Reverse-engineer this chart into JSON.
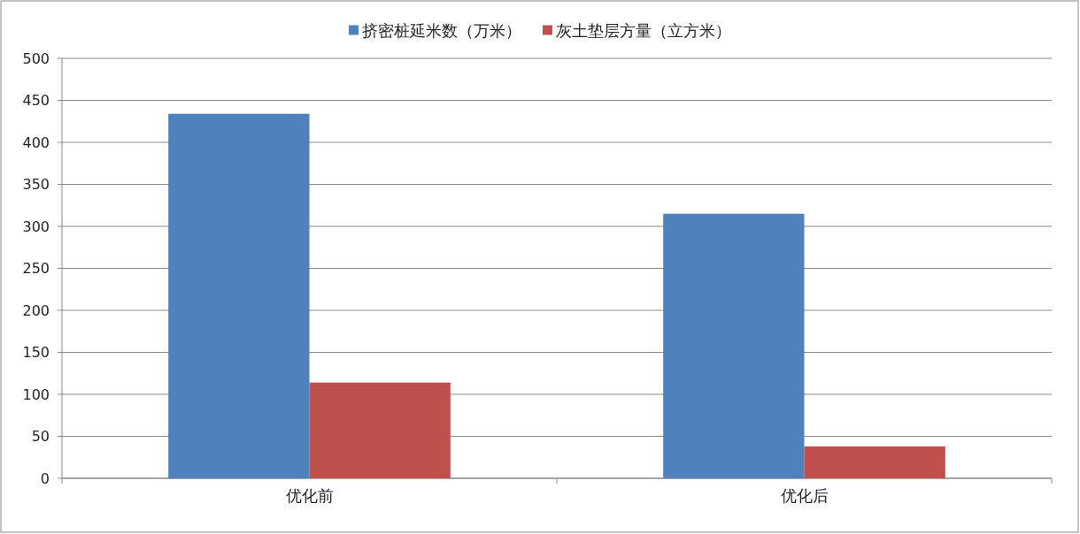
{
  "chart_data": {
    "type": "bar",
    "categories": [
      "优化前",
      "优化后"
    ],
    "series": [
      {
        "name": "挤密桩延米数（万米）",
        "color": "#4f81bd",
        "values": [
          434,
          315
        ]
      },
      {
        "name": "灰土垫层方量（立方米）",
        "color": "#c0504d",
        "values": [
          114,
          38
        ]
      }
    ],
    "ylim": [
      0,
      500
    ],
    "yticks": [
      0,
      50,
      100,
      150,
      200,
      250,
      300,
      350,
      400,
      450,
      500
    ],
    "grid": "y",
    "legend": "top"
  }
}
